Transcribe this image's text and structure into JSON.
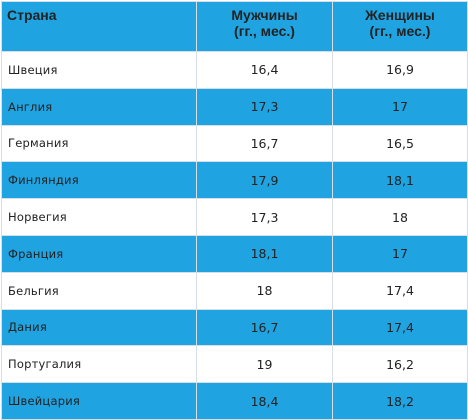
{
  "table": {
    "headers": {
      "country": "Страна",
      "men_line1": "Мужчины",
      "men_line2": "(гг., мес.)",
      "women_line1": "Женщины",
      "women_line2": "(гг., мес.)"
    },
    "rows": [
      {
        "country": "Швеция",
        "men": "16,4",
        "women": "16,9"
      },
      {
        "country": "Англия",
        "men": "17,3",
        "women": "17"
      },
      {
        "country": "Германия",
        "men": "16,7",
        "women": "16,5"
      },
      {
        "country": "Финляндия",
        "men": "17,9",
        "women": "18,1"
      },
      {
        "country": "Норвегия",
        "men": "17,3",
        "women": "18"
      },
      {
        "country": "Франция",
        "men": "18,1",
        "women": "17"
      },
      {
        "country": "Бельгия",
        "men": "18",
        "women": "17,4"
      },
      {
        "country": "Дания",
        "men": "16,7",
        "women": "17,4"
      },
      {
        "country": "Португалия",
        "men": "19",
        "women": "16,2"
      },
      {
        "country": "Швейцария",
        "men": "18,4",
        "women": "18,2"
      }
    ]
  },
  "colors": {
    "accent": "#1fa3e1",
    "row_plain": "#ffffff"
  }
}
